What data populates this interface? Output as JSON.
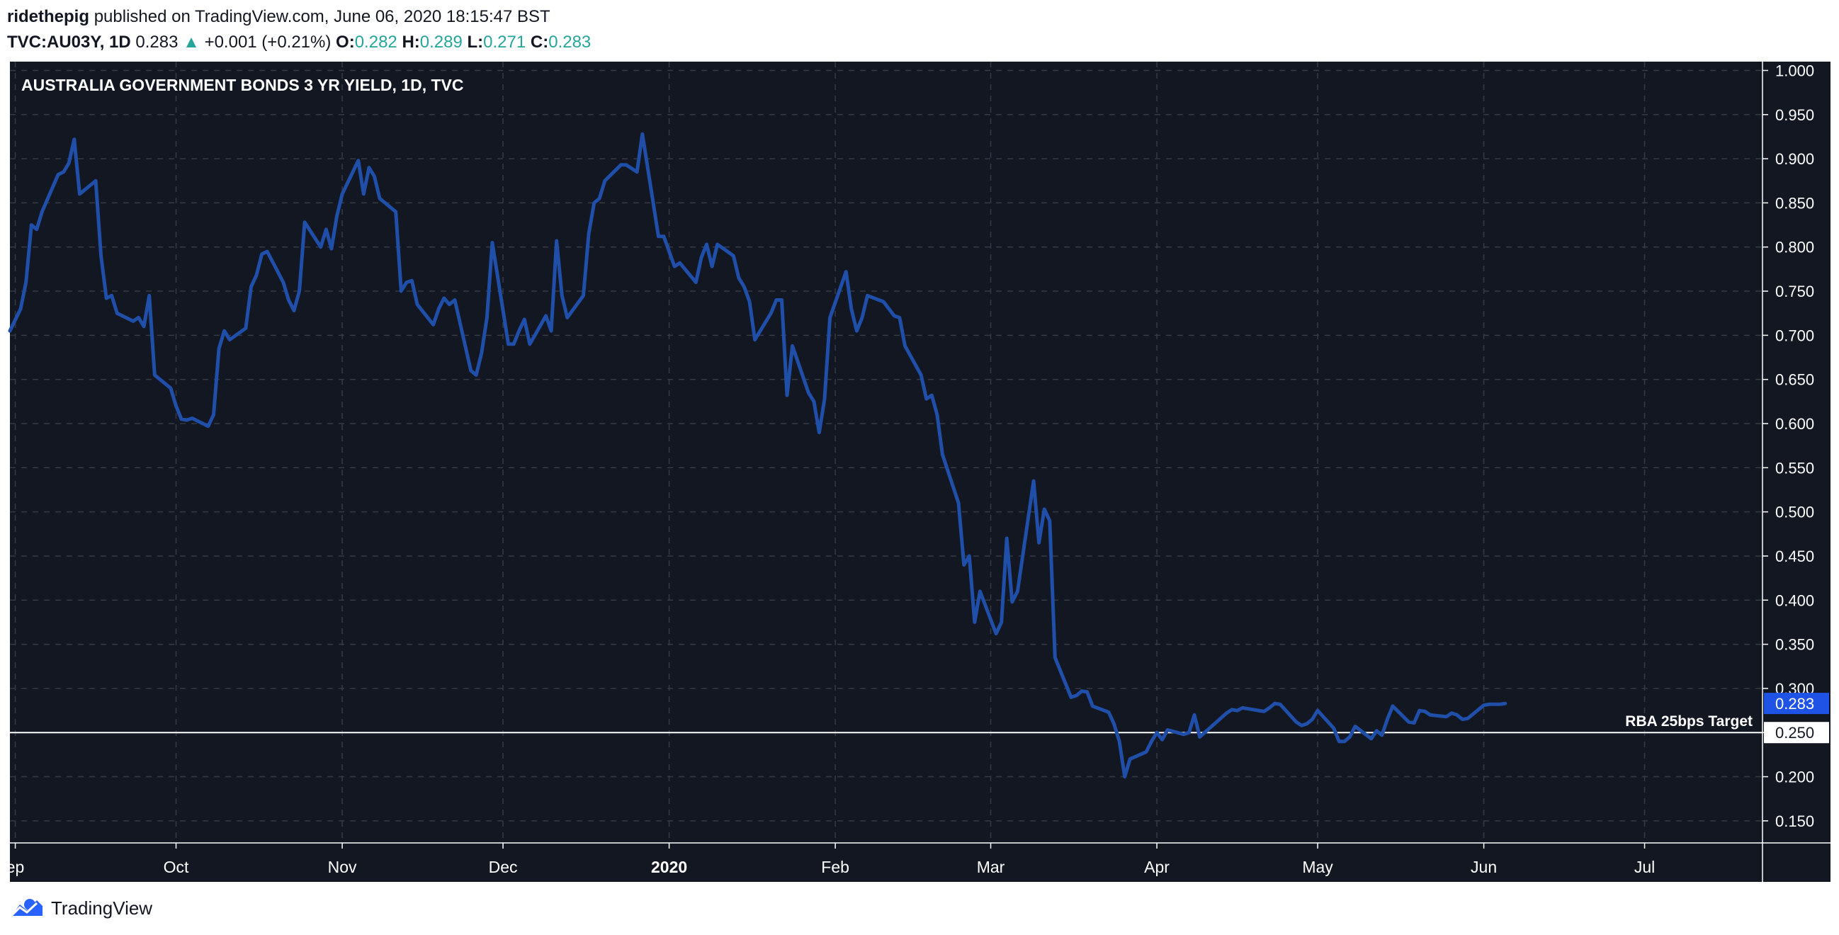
{
  "header": {
    "author": "ridethepig",
    "published_text": "published on TradingView.com, June 06, 2020 18:15:47 BST",
    "symbol": "TVC:AU03Y, 1D",
    "last": "0.283",
    "change": "+0.001 (+0.21%)",
    "open_label": "O:",
    "open": "0.282",
    "high_label": "H:",
    "high": "0.289",
    "low_label": "L:",
    "low": "0.271",
    "close_label": "C:",
    "close": "0.283"
  },
  "footer": {
    "brand": "TradingView"
  },
  "colors": {
    "background": "#131722",
    "line": "#1f4fa8",
    "grid": "#363a45",
    "text": "#ffffff",
    "price_tag": "#1e53e5",
    "change_up": "#26a69a"
  },
  "chart_data": {
    "type": "line",
    "title": "AUSTRALIA GOVERNMENT BONDS 3 YR YIELD, 1D, TVC",
    "xlabel": "",
    "ylabel": "",
    "ylim": [
      0.125,
      1.01
    ],
    "y_ticks": [
      "1.000",
      "0.950",
      "0.900",
      "0.850",
      "0.800",
      "0.750",
      "0.700",
      "0.650",
      "0.600",
      "0.550",
      "0.500",
      "0.450",
      "0.400",
      "0.350",
      "0.300",
      "0.250",
      "0.200",
      "0.150"
    ],
    "x_ticks": [
      {
        "label": "ep",
        "date": "2019-09-01"
      },
      {
        "label": "Oct",
        "date": "2019-10-01"
      },
      {
        "label": "Nov",
        "date": "2019-11-01"
      },
      {
        "label": "Dec",
        "date": "2019-12-01"
      },
      {
        "label": "2020",
        "date": "2020-01-01",
        "bold": true
      },
      {
        "label": "Feb",
        "date": "2020-02-01"
      },
      {
        "label": "Mar",
        "date": "2020-03-01"
      },
      {
        "label": "Apr",
        "date": "2020-04-01"
      },
      {
        "label": "May",
        "date": "2020-05-01"
      },
      {
        "label": "Jun",
        "date": "2020-06-01"
      },
      {
        "label": "Jul",
        "date": "2020-07-01"
      }
    ],
    "x_range": [
      "2019-08-31",
      "2020-07-23"
    ],
    "hline": {
      "value": 0.25,
      "label": "RBA 25bps Target",
      "tag": "0.250"
    },
    "last_price_tag": "0.283",
    "grid": true,
    "series": [
      {
        "points": [
          [
            "2019-08-31",
            0.705
          ],
          [
            "2019-09-02",
            0.73
          ],
          [
            "2019-09-03",
            0.76
          ],
          [
            "2019-09-04",
            0.825
          ],
          [
            "2019-09-05",
            0.82
          ],
          [
            "2019-09-06",
            0.84
          ],
          [
            "2019-09-09",
            0.882
          ],
          [
            "2019-09-10",
            0.885
          ],
          [
            "2019-09-11",
            0.895
          ],
          [
            "2019-09-12",
            0.922
          ],
          [
            "2019-09-13",
            0.86
          ],
          [
            "2019-09-16",
            0.875
          ],
          [
            "2019-09-17",
            0.79
          ],
          [
            "2019-09-18",
            0.742
          ],
          [
            "2019-09-19",
            0.745
          ],
          [
            "2019-09-20",
            0.725
          ],
          [
            "2019-09-23",
            0.716
          ],
          [
            "2019-09-24",
            0.72
          ],
          [
            "2019-09-25",
            0.71
          ],
          [
            "2019-09-26",
            0.745
          ],
          [
            "2019-09-27",
            0.655
          ],
          [
            "2019-09-30",
            0.64
          ],
          [
            "2019-10-01",
            0.62
          ],
          [
            "2019-10-02",
            0.605
          ],
          [
            "2019-10-03",
            0.604
          ],
          [
            "2019-10-04",
            0.606
          ],
          [
            "2019-10-07",
            0.597
          ],
          [
            "2019-10-08",
            0.61
          ],
          [
            "2019-10-09",
            0.685
          ],
          [
            "2019-10-10",
            0.705
          ],
          [
            "2019-10-11",
            0.695
          ],
          [
            "2019-10-14",
            0.708
          ],
          [
            "2019-10-15",
            0.755
          ],
          [
            "2019-10-16",
            0.768
          ],
          [
            "2019-10-17",
            0.792
          ],
          [
            "2019-10-18",
            0.795
          ],
          [
            "2019-10-21",
            0.76
          ],
          [
            "2019-10-22",
            0.74
          ],
          [
            "2019-10-23",
            0.728
          ],
          [
            "2019-10-24",
            0.75
          ],
          [
            "2019-10-25",
            0.828
          ],
          [
            "2019-10-28",
            0.8
          ],
          [
            "2019-10-29",
            0.82
          ],
          [
            "2019-10-30",
            0.798
          ],
          [
            "2019-10-31",
            0.835
          ],
          [
            "2019-11-01",
            0.86
          ],
          [
            "2019-11-04",
            0.898
          ],
          [
            "2019-11-05",
            0.86
          ],
          [
            "2019-11-06",
            0.89
          ],
          [
            "2019-11-07",
            0.88
          ],
          [
            "2019-11-08",
            0.855
          ],
          [
            "2019-11-11",
            0.84
          ],
          [
            "2019-11-12",
            0.75
          ],
          [
            "2019-11-13",
            0.76
          ],
          [
            "2019-11-14",
            0.762
          ],
          [
            "2019-11-15",
            0.735
          ],
          [
            "2019-11-18",
            0.712
          ],
          [
            "2019-11-19",
            0.73
          ],
          [
            "2019-11-20",
            0.742
          ],
          [
            "2019-11-21",
            0.735
          ],
          [
            "2019-11-22",
            0.74
          ],
          [
            "2019-11-25",
            0.66
          ],
          [
            "2019-11-26",
            0.655
          ],
          [
            "2019-11-27",
            0.68
          ],
          [
            "2019-11-28",
            0.72
          ],
          [
            "2019-11-29",
            0.805
          ],
          [
            "2019-12-02",
            0.69
          ],
          [
            "2019-12-03",
            0.69
          ],
          [
            "2019-12-04",
            0.705
          ],
          [
            "2019-12-05",
            0.718
          ],
          [
            "2019-12-06",
            0.69
          ],
          [
            "2019-12-09",
            0.722
          ],
          [
            "2019-12-10",
            0.705
          ],
          [
            "2019-12-11",
            0.807
          ],
          [
            "2019-12-12",
            0.745
          ],
          [
            "2019-12-13",
            0.72
          ],
          [
            "2019-12-16",
            0.745
          ],
          [
            "2019-12-17",
            0.815
          ],
          [
            "2019-12-18",
            0.85
          ],
          [
            "2019-12-19",
            0.855
          ],
          [
            "2019-12-20",
            0.875
          ],
          [
            "2019-12-23",
            0.893
          ],
          [
            "2019-12-24",
            0.893
          ],
          [
            "2019-12-26",
            0.885
          ],
          [
            "2019-12-27",
            0.928
          ],
          [
            "2019-12-30",
            0.812
          ],
          [
            "2019-12-31",
            0.812
          ],
          [
            "2020-01-02",
            0.778
          ],
          [
            "2020-01-03",
            0.782
          ],
          [
            "2020-01-06",
            0.76
          ],
          [
            "2020-01-07",
            0.788
          ],
          [
            "2020-01-08",
            0.803
          ],
          [
            "2020-01-09",
            0.778
          ],
          [
            "2020-01-10",
            0.803
          ],
          [
            "2020-01-13",
            0.79
          ],
          [
            "2020-01-14",
            0.765
          ],
          [
            "2020-01-15",
            0.755
          ],
          [
            "2020-01-16",
            0.738
          ],
          [
            "2020-01-17",
            0.695
          ],
          [
            "2020-01-20",
            0.725
          ],
          [
            "2020-01-21",
            0.74
          ],
          [
            "2020-01-22",
            0.74
          ],
          [
            "2020-01-23",
            0.632
          ],
          [
            "2020-01-24",
            0.688
          ],
          [
            "2020-01-27",
            0.635
          ],
          [
            "2020-01-28",
            0.625
          ],
          [
            "2020-01-29",
            0.59
          ],
          [
            "2020-01-30",
            0.628
          ],
          [
            "2020-01-31",
            0.72
          ],
          [
            "2020-02-03",
            0.772
          ],
          [
            "2020-02-04",
            0.73
          ],
          [
            "2020-02-05",
            0.705
          ],
          [
            "2020-02-06",
            0.72
          ],
          [
            "2020-02-07",
            0.745
          ],
          [
            "2020-02-10",
            0.738
          ],
          [
            "2020-02-11",
            0.73
          ],
          [
            "2020-02-12",
            0.722
          ],
          [
            "2020-02-13",
            0.72
          ],
          [
            "2020-02-14",
            0.688
          ],
          [
            "2020-02-17",
            0.655
          ],
          [
            "2020-02-18",
            0.628
          ],
          [
            "2020-02-19",
            0.632
          ],
          [
            "2020-02-20",
            0.61
          ],
          [
            "2020-02-21",
            0.565
          ],
          [
            "2020-02-24",
            0.51
          ],
          [
            "2020-02-25",
            0.44
          ],
          [
            "2020-02-26",
            0.45
          ],
          [
            "2020-02-27",
            0.375
          ],
          [
            "2020-02-28",
            0.41
          ],
          [
            "2020-03-02",
            0.362
          ],
          [
            "2020-03-03",
            0.375
          ],
          [
            "2020-03-04",
            0.47
          ],
          [
            "2020-03-05",
            0.398
          ],
          [
            "2020-03-06",
            0.41
          ],
          [
            "2020-03-09",
            0.535
          ],
          [
            "2020-03-10",
            0.465
          ],
          [
            "2020-03-11",
            0.503
          ],
          [
            "2020-03-12",
            0.49
          ],
          [
            "2020-03-13",
            0.335
          ],
          [
            "2020-03-16",
            0.29
          ],
          [
            "2020-03-17",
            0.292
          ],
          [
            "2020-03-18",
            0.297
          ],
          [
            "2020-03-19",
            0.296
          ],
          [
            "2020-03-20",
            0.28
          ],
          [
            "2020-03-23",
            0.273
          ],
          [
            "2020-03-24",
            0.26
          ],
          [
            "2020-03-25",
            0.24
          ],
          [
            "2020-03-26",
            0.2
          ],
          [
            "2020-03-27",
            0.22
          ],
          [
            "2020-03-30",
            0.228
          ],
          [
            "2020-03-31",
            0.24
          ],
          [
            "2020-04-01",
            0.25
          ],
          [
            "2020-04-02",
            0.242
          ],
          [
            "2020-04-03",
            0.253
          ],
          [
            "2020-04-06",
            0.248
          ],
          [
            "2020-04-07",
            0.25
          ],
          [
            "2020-04-08",
            0.27
          ],
          [
            "2020-04-09",
            0.245
          ],
          [
            "2020-04-14",
            0.272
          ],
          [
            "2020-04-15",
            0.276
          ],
          [
            "2020-04-16",
            0.275
          ],
          [
            "2020-04-17",
            0.278
          ],
          [
            "2020-04-20",
            0.275
          ],
          [
            "2020-04-21",
            0.274
          ],
          [
            "2020-04-22",
            0.278
          ],
          [
            "2020-04-23",
            0.283
          ],
          [
            "2020-04-24",
            0.282
          ],
          [
            "2020-04-27",
            0.262
          ],
          [
            "2020-04-28",
            0.258
          ],
          [
            "2020-04-29",
            0.26
          ],
          [
            "2020-04-30",
            0.265
          ],
          [
            "2020-05-01",
            0.275
          ],
          [
            "2020-05-04",
            0.255
          ],
          [
            "2020-05-05",
            0.24
          ],
          [
            "2020-05-06",
            0.24
          ],
          [
            "2020-05-07",
            0.245
          ],
          [
            "2020-05-08",
            0.257
          ],
          [
            "2020-05-11",
            0.243
          ],
          [
            "2020-05-12",
            0.252
          ],
          [
            "2020-05-13",
            0.247
          ],
          [
            "2020-05-14",
            0.265
          ],
          [
            "2020-05-15",
            0.28
          ],
          [
            "2020-05-18",
            0.262
          ],
          [
            "2020-05-19",
            0.261
          ],
          [
            "2020-05-20",
            0.275
          ],
          [
            "2020-05-21",
            0.274
          ],
          [
            "2020-05-22",
            0.27
          ],
          [
            "2020-05-25",
            0.268
          ],
          [
            "2020-05-26",
            0.272
          ],
          [
            "2020-05-27",
            0.27
          ],
          [
            "2020-05-28",
            0.265
          ],
          [
            "2020-05-29",
            0.266
          ],
          [
            "2020-06-01",
            0.281
          ],
          [
            "2020-06-02",
            0.282
          ],
          [
            "2020-06-03",
            0.282
          ],
          [
            "2020-06-04",
            0.282
          ],
          [
            "2020-06-05",
            0.283
          ]
        ]
      }
    ]
  }
}
